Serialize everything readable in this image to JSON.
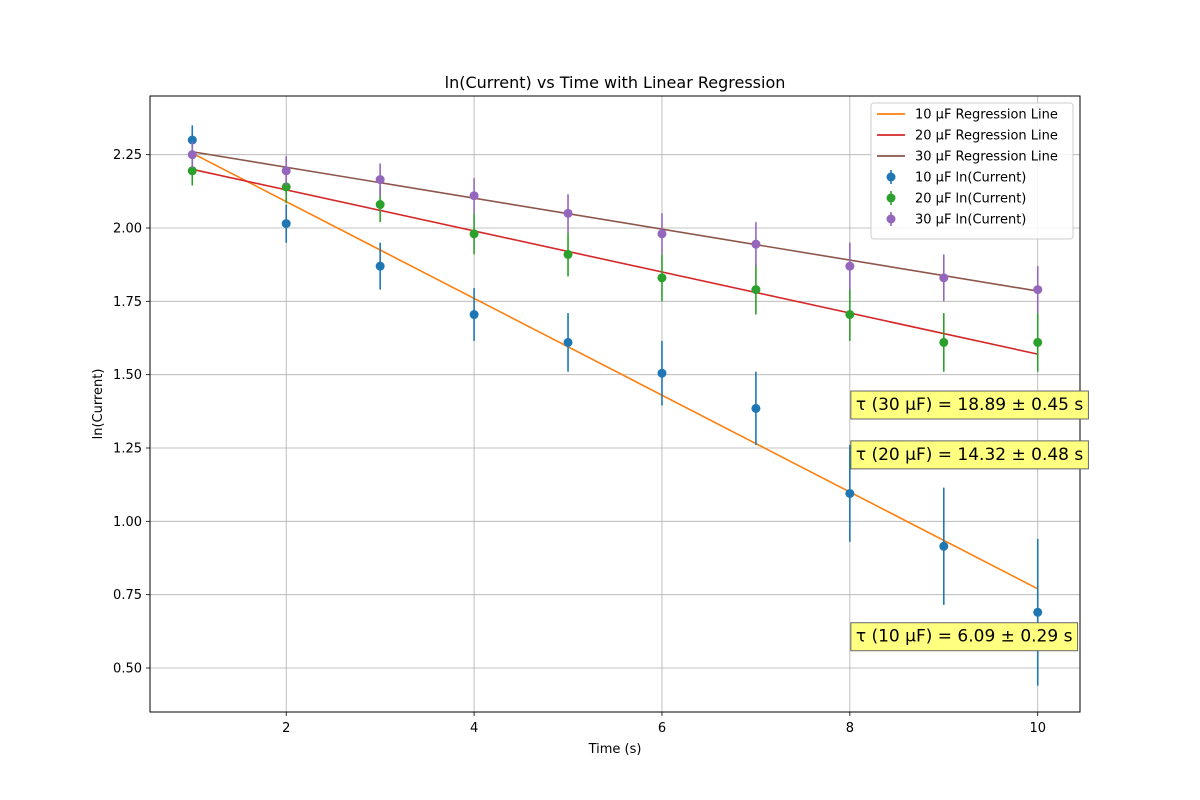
{
  "chart_data": {
    "type": "scatter",
    "title": "ln(Current) vs Time with Linear Regression",
    "xlabel": "Time (s)",
    "ylabel": "ln(Current)",
    "xlim": [
      0.55,
      10.45
    ],
    "ylim": [
      0.35,
      2.45
    ],
    "xticks": [
      2,
      4,
      6,
      8,
      10
    ],
    "xtick_labels": [
      "2",
      "4",
      "6",
      "8",
      "10"
    ],
    "yticks": [
      0.5,
      0.75,
      1.0,
      1.25,
      1.5,
      1.75,
      2.0,
      2.25
    ],
    "ytick_labels": [
      "0.50",
      "0.75",
      "1.00",
      "1.25",
      "1.50",
      "1.75",
      "2.00",
      "2.25"
    ],
    "grid": true,
    "legend_position": "top-right",
    "x": [
      1,
      2,
      3,
      4,
      5,
      6,
      7,
      8,
      9,
      10
    ],
    "series": [
      {
        "name": "10 μF ln(Current)",
        "kind": "errorbar",
        "color": "#1f77b4",
        "values": [
          2.3,
          2.015,
          1.87,
          1.705,
          1.61,
          1.505,
          1.385,
          1.095,
          0.915,
          0.69
        ],
        "errors": [
          0.05,
          0.065,
          0.08,
          0.09,
          0.1,
          0.11,
          0.125,
          0.165,
          0.2,
          0.25
        ]
      },
      {
        "name": "20 μF ln(Current)",
        "kind": "errorbar",
        "color": "#2ca02c",
        "values": [
          2.195,
          2.14,
          2.08,
          1.98,
          1.91,
          1.83,
          1.79,
          1.705,
          1.61,
          1.61
        ],
        "errors": [
          0.05,
          0.055,
          0.06,
          0.07,
          0.075,
          0.08,
          0.085,
          0.09,
          0.1,
          0.1
        ]
      },
      {
        "name": "30 μF ln(Current)",
        "kind": "errorbar",
        "color": "#9467bd",
        "values": [
          2.25,
          2.195,
          2.165,
          2.11,
          2.05,
          1.98,
          1.945,
          1.87,
          1.83,
          1.79
        ],
        "errors": [
          0.045,
          0.05,
          0.055,
          0.06,
          0.065,
          0.07,
          0.075,
          0.08,
          0.08,
          0.08
        ]
      },
      {
        "name": "10 μF Regression Line",
        "kind": "line",
        "color": "#ff7f0e",
        "x_range": [
          1,
          10
        ],
        "y_range": [
          2.255,
          0.77
        ]
      },
      {
        "name": "20 μF Regression Line",
        "kind": "line",
        "color": "#d62728",
        "x_range": [
          1,
          10
        ],
        "y_range": [
          2.2,
          1.57
        ]
      },
      {
        "name": "30 μF Regression Line",
        "kind": "line",
        "color": "#8c564b",
        "x_range": [
          1,
          10
        ],
        "y_range": [
          2.26,
          1.785
        ]
      }
    ],
    "legend": [
      {
        "label": "10 μF Regression Line",
        "kind": "line",
        "color": "#ff7f0e"
      },
      {
        "label": "20 μF Regression Line",
        "kind": "line",
        "color": "#d62728"
      },
      {
        "label": "30 μF Regression Line",
        "kind": "line",
        "color": "#8c564b"
      },
      {
        "label": "10 μF ln(Current)",
        "kind": "errorbar",
        "color": "#1f77b4"
      },
      {
        "label": "20 μF ln(Current)",
        "kind": "errorbar",
        "color": "#2ca02c"
      },
      {
        "label": "30 μF ln(Current)",
        "kind": "errorbar",
        "color": "#9467bd"
      }
    ],
    "annotations": [
      {
        "text": "τ (30 μF) = 18.89 ± 0.45 s",
        "x": 8,
        "y": 1.4
      },
      {
        "text": "τ (20 μF) = 14.32 ± 0.48 s",
        "x": 8,
        "y": 1.23
      },
      {
        "text": "τ (10 μF) = 6.09 ± 0.29 s",
        "x": 8,
        "y": 0.61
      }
    ],
    "annotation_box_color": "#ffff80"
  }
}
